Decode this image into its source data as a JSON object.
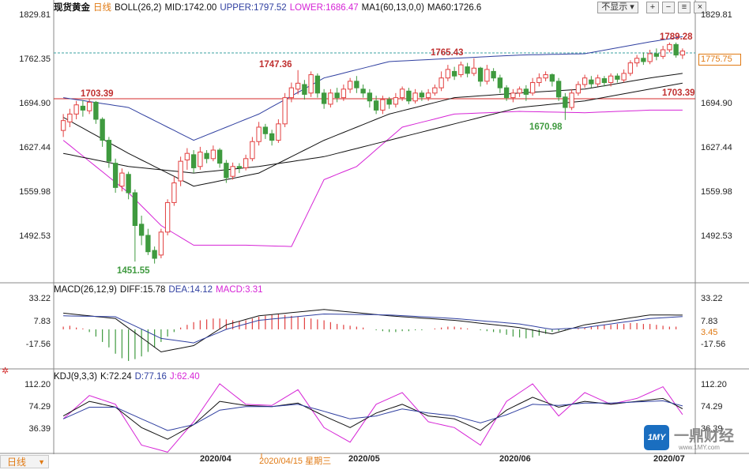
{
  "main_header": {
    "symbol": "现货黄金",
    "period": "日线",
    "boll": "BOLL(26,2)",
    "mid": "MID:1742.00",
    "upper": "UPPER:1797.52",
    "lower": "LOWER:1686.47",
    "ma": "MA1(60,13,0,0)",
    "ma60": "MA60:1726.6"
  },
  "toolbar": {
    "hide_label": "不显示"
  },
  "macd_header": {
    "name": "MACD(26,12,9)",
    "diff": "DIFF:15.78",
    "dea": "DEA:14.12",
    "macd": "MACD:3.31"
  },
  "kdj_header": {
    "name": "KDJ(9,3,3)",
    "k": "K:72.24",
    "d": "D:77.16",
    "j": "J:62.40"
  },
  "price_axis": [
    "1829.81",
    "1762.35",
    "1694.90",
    "1627.44",
    "1559.98",
    "1492.53"
  ],
  "macd_axis": [
    "33.22",
    "7.83",
    "-17.56"
  ],
  "macd_current": "3.45",
  "kdj_axis": [
    "112.20",
    "74.29",
    "36.39"
  ],
  "price_tag": "1775.75",
  "annotations": {
    "a1703_left": "1703.39",
    "a1747": "1747.36",
    "a1765": "1765.43",
    "a1789": "1789.28",
    "a1703_right": "1703.39",
    "a1451": "1451.55",
    "a1670": "1670.98"
  },
  "dates": {
    "apr": "2020/04",
    "cursor": "2020/04/15 星期三",
    "may": "2020/05",
    "jun": "2020/06",
    "jul": "2020/07"
  },
  "timeframe": "日线",
  "watermark": "一鼎财经",
  "watermark_sub": "www.1MY.com",
  "colors": {
    "up": "#e24040",
    "down": "#3f9a3f",
    "upper": "#2f3fa0",
    "lower": "#d624d6",
    "mid": "#111111",
    "ma60": "#111111",
    "ref_line": "#d42a2a",
    "dashed": "#3aa0a0",
    "macd_diff": "#111111",
    "macd_dea": "#2f3fa0",
    "kdj_k": "#111111",
    "kdj_d": "#2f3fa0",
    "kdj_j": "#d624d6"
  },
  "chart_data": {
    "type": "candlestick",
    "title": "现货黄金 日线",
    "price_range": [
      1440,
      1835
    ],
    "macd_range": [
      -40,
      36
    ],
    "kdj_range": [
      -5,
      125
    ],
    "reference_line": 1703.39,
    "candles": [
      [
        1655,
        1670,
        1645,
        1680
      ],
      [
        1668,
        1680,
        1660,
        1688
      ],
      [
        1680,
        1694,
        1672,
        1700
      ],
      [
        1692,
        1686,
        1676,
        1701
      ],
      [
        1685,
        1698,
        1680,
        1704
      ],
      [
        1698,
        1672,
        1665,
        1700
      ],
      [
        1672,
        1640,
        1630,
        1675
      ],
      [
        1640,
        1608,
        1598,
        1645
      ],
      [
        1605,
        1568,
        1560,
        1612
      ],
      [
        1570,
        1590,
        1562,
        1597
      ],
      [
        1588,
        1560,
        1550,
        1592
      ],
      [
        1560,
        1510,
        1455,
        1565
      ],
      [
        1512,
        1495,
        1480,
        1525
      ],
      [
        1495,
        1470,
        1465,
        1505
      ],
      [
        1472,
        1460,
        1452,
        1478
      ],
      [
        1465,
        1500,
        1460,
        1505
      ],
      [
        1500,
        1545,
        1495,
        1550
      ],
      [
        1545,
        1575,
        1540,
        1585
      ],
      [
        1578,
        1608,
        1570,
        1615
      ],
      [
        1610,
        1620,
        1595,
        1628
      ],
      [
        1618,
        1598,
        1590,
        1625
      ],
      [
        1600,
        1622,
        1595,
        1630
      ],
      [
        1620,
        1612,
        1605,
        1625
      ],
      [
        1612,
        1625,
        1608,
        1632
      ],
      [
        1625,
        1605,
        1598,
        1628
      ],
      [
        1605,
        1583,
        1575,
        1610
      ],
      [
        1585,
        1600,
        1580,
        1606
      ],
      [
        1600,
        1598,
        1590,
        1605
      ],
      [
        1598,
        1612,
        1594,
        1618
      ],
      [
        1612,
        1638,
        1608,
        1645
      ],
      [
        1638,
        1660,
        1632,
        1668
      ],
      [
        1660,
        1650,
        1642,
        1665
      ],
      [
        1650,
        1640,
        1632,
        1656
      ],
      [
        1640,
        1665,
        1636,
        1672
      ],
      [
        1665,
        1705,
        1660,
        1712
      ],
      [
        1705,
        1720,
        1698,
        1728
      ],
      [
        1718,
        1727,
        1710,
        1747
      ],
      [
        1725,
        1710,
        1702,
        1732
      ],
      [
        1712,
        1740,
        1706,
        1745
      ],
      [
        1738,
        1712,
        1705,
        1742
      ],
      [
        1712,
        1696,
        1688,
        1718
      ],
      [
        1695,
        1712,
        1690,
        1718
      ],
      [
        1712,
        1705,
        1698,
        1720
      ],
      [
        1705,
        1718,
        1700,
        1725
      ],
      [
        1718,
        1730,
        1712,
        1735
      ],
      [
        1730,
        1720,
        1712,
        1738
      ],
      [
        1718,
        1712,
        1705,
        1725
      ],
      [
        1712,
        1700,
        1690,
        1718
      ],
      [
        1700,
        1686,
        1680,
        1708
      ],
      [
        1686,
        1702,
        1680,
        1708
      ],
      [
        1702,
        1695,
        1688,
        1706
      ],
      [
        1695,
        1705,
        1690,
        1712
      ],
      [
        1705,
        1718,
        1700,
        1722
      ],
      [
        1715,
        1700,
        1695,
        1720
      ],
      [
        1700,
        1712,
        1696,
        1718
      ],
      [
        1712,
        1706,
        1700,
        1716
      ],
      [
        1705,
        1712,
        1700,
        1718
      ],
      [
        1712,
        1720,
        1708,
        1725
      ],
      [
        1720,
        1735,
        1715,
        1745
      ],
      [
        1735,
        1748,
        1730,
        1755
      ],
      [
        1745,
        1738,
        1732,
        1752
      ],
      [
        1740,
        1755,
        1736,
        1760
      ],
      [
        1752,
        1742,
        1736,
        1758
      ],
      [
        1742,
        1750,
        1738,
        1765
      ],
      [
        1750,
        1730,
        1722,
        1752
      ],
      [
        1730,
        1748,
        1725,
        1755
      ],
      [
        1745,
        1735,
        1730,
        1750
      ],
      [
        1735,
        1720,
        1712,
        1740
      ],
      [
        1720,
        1705,
        1700,
        1724
      ],
      [
        1705,
        1712,
        1698,
        1718
      ],
      [
        1712,
        1718,
        1706,
        1722
      ],
      [
        1718,
        1710,
        1700,
        1724
      ],
      [
        1712,
        1728,
        1708,
        1735
      ],
      [
        1728,
        1735,
        1722,
        1742
      ],
      [
        1735,
        1740,
        1730,
        1745
      ],
      [
        1740,
        1730,
        1722,
        1742
      ],
      [
        1730,
        1706,
        1700,
        1735
      ],
      [
        1706,
        1690,
        1671,
        1712
      ],
      [
        1690,
        1712,
        1686,
        1718
      ],
      [
        1712,
        1725,
        1708,
        1730
      ],
      [
        1725,
        1735,
        1720,
        1740
      ],
      [
        1732,
        1726,
        1720,
        1738
      ],
      [
        1726,
        1735,
        1722,
        1740
      ],
      [
        1734,
        1728,
        1722,
        1738
      ],
      [
        1728,
        1738,
        1722,
        1742
      ],
      [
        1738,
        1733,
        1728,
        1742
      ],
      [
        1732,
        1742,
        1728,
        1748
      ],
      [
        1742,
        1758,
        1738,
        1762
      ],
      [
        1758,
        1765,
        1752,
        1770
      ],
      [
        1765,
        1760,
        1755,
        1774
      ],
      [
        1760,
        1772,
        1756,
        1778
      ],
      [
        1772,
        1768,
        1762,
        1780
      ],
      [
        1768,
        1778,
        1764,
        1784
      ],
      [
        1778,
        1786,
        1774,
        1789
      ],
      [
        1786,
        1770,
        1766,
        1789
      ],
      [
        1770,
        1776,
        1764,
        1780
      ]
    ],
    "boll_upper_x": [
      0,
      10,
      20,
      30,
      40,
      50,
      60,
      70,
      80,
      90,
      95
    ],
    "boll_upper": [
      1705,
      1690,
      1640,
      1680,
      1735,
      1760,
      1765,
      1770,
      1772,
      1790,
      1798
    ],
    "boll_mid_x": [
      0,
      10,
      20,
      30,
      40,
      50,
      60,
      70,
      80,
      90,
      95
    ],
    "boll_mid": [
      1675,
      1620,
      1570,
      1590,
      1640,
      1680,
      1705,
      1712,
      1718,
      1735,
      1742
    ],
    "boll_lower_x": [
      0,
      10,
      15,
      20,
      28,
      35,
      40,
      45,
      52,
      60,
      70,
      80,
      90,
      95
    ],
    "boll_lower": [
      1640,
      1560,
      1510,
      1480,
      1480,
      1478,
      1580,
      1600,
      1660,
      1680,
      1684,
      1682,
      1686,
      1686
    ],
    "ma60_x": [
      0,
      10,
      20,
      30,
      40,
      50,
      60,
      70,
      80,
      90,
      95
    ],
    "ma60": [
      1620,
      1600,
      1590,
      1600,
      1615,
      1640,
      1665,
      1690,
      1700,
      1718,
      1727
    ],
    "macd_hist": [
      3,
      4,
      2,
      1,
      -3,
      -8,
      -14,
      -20,
      -27,
      -32,
      -35,
      -33,
      -30,
      -25,
      -20,
      -14,
      -8,
      -3,
      2,
      5,
      8,
      10,
      11,
      12,
      12,
      11,
      10,
      9,
      10,
      12,
      14,
      15,
      16,
      17,
      16,
      15,
      14,
      13,
      12,
      11,
      10,
      8,
      6,
      5,
      4,
      3,
      2,
      0,
      -1,
      -2,
      -3,
      -3,
      -2,
      -2,
      -1,
      -1,
      0,
      1,
      2,
      3,
      3,
      2,
      1,
      0,
      -1,
      -2,
      -3,
      -4,
      -6,
      -8,
      -9,
      -10,
      -9,
      -7,
      -5,
      -3,
      -2,
      -1,
      0,
      1,
      2,
      3,
      4,
      5,
      5,
      6,
      6,
      7,
      7,
      6,
      6,
      5,
      4,
      3,
      3
    ],
    "macd_diff_x": [
      0,
      8,
      15,
      20,
      25,
      30,
      40,
      50,
      60,
      70,
      75,
      80,
      90,
      95
    ],
    "macd_diff": [
      18,
      12,
      -25,
      -18,
      5,
      15,
      22,
      15,
      10,
      2,
      -5,
      5,
      16,
      15.78
    ],
    "macd_dea_x": [
      0,
      8,
      15,
      20,
      25,
      30,
      40,
      50,
      60,
      70,
      75,
      80,
      90,
      95
    ],
    "macd_dea": [
      15,
      14,
      -10,
      -15,
      0,
      10,
      17,
      16,
      12,
      6,
      0,
      2,
      12,
      14.12
    ],
    "kdj_j_x": [
      0,
      4,
      8,
      12,
      16,
      20,
      24,
      28,
      32,
      36,
      40,
      44,
      48,
      52,
      56,
      60,
      64,
      68,
      72,
      76,
      80,
      84,
      88,
      92,
      95
    ],
    "kdj_j": [
      55,
      95,
      80,
      10,
      -2,
      50,
      115,
      80,
      78,
      105,
      40,
      15,
      80,
      100,
      50,
      40,
      10,
      85,
      115,
      60,
      100,
      80,
      90,
      110,
      62.4
    ],
    "kdj_k_x": [
      0,
      4,
      8,
      12,
      16,
      20,
      24,
      28,
      32,
      36,
      40,
      44,
      48,
      52,
      56,
      60,
      64,
      68,
      72,
      76,
      80,
      84,
      88,
      92,
      95
    ],
    "kdj_k": [
      60,
      85,
      75,
      40,
      20,
      45,
      85,
      78,
      76,
      82,
      60,
      40,
      65,
      80,
      60,
      55,
      35,
      70,
      92,
      75,
      85,
      80,
      85,
      90,
      72.24
    ],
    "kdj_d_x": [
      0,
      4,
      8,
      12,
      16,
      20,
      24,
      28,
      32,
      36,
      40,
      44,
      48,
      52,
      56,
      60,
      64,
      68,
      72,
      76,
      80,
      84,
      88,
      92,
      95
    ],
    "kdj_d": [
      55,
      75,
      75,
      55,
      35,
      45,
      70,
      76,
      76,
      80,
      68,
      55,
      60,
      72,
      65,
      60,
      48,
      62,
      80,
      78,
      82,
      82,
      84,
      86,
      77.16
    ]
  }
}
